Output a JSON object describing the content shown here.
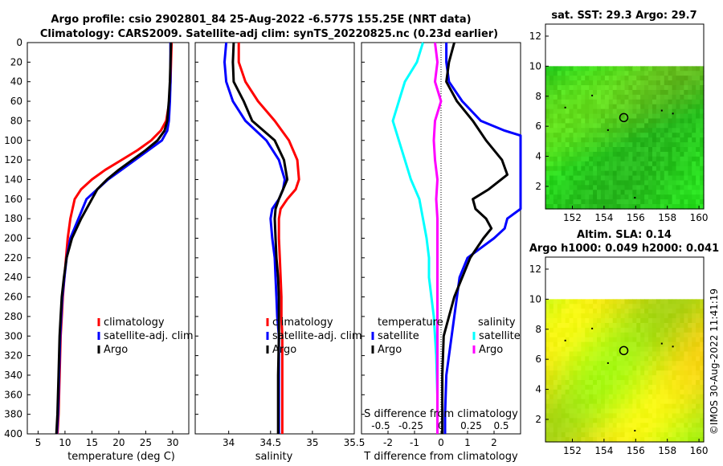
{
  "header": {
    "line1": "Argo profile: csio 2902801_84 25-Aug-2022 -6.577S 155.25E (NRT data)",
    "line2": "Climatology: CARS2009. Satellite-adj clim: synTS_20220825.nc (0.23d earlier)"
  },
  "copyright": "©IMOS 30-Aug-2022 11:41:19",
  "colors": {
    "climatology": "#ff0000",
    "satellite": "#0000ff",
    "argo": "#000000",
    "t_sat_diff": "#00ffff",
    "s_argo_diff": "#ff00ff"
  },
  "chart_data": [
    {
      "type": "line",
      "name": "temperature-profile",
      "xlabel": "temperature (deg C)",
      "ylabel": "",
      "xlim": [
        3,
        33
      ],
      "ylim": [
        400,
        0
      ],
      "xticks": [
        5,
        10,
        15,
        20,
        25,
        30
      ],
      "yticks": [
        0,
        20,
        40,
        60,
        80,
        100,
        120,
        140,
        160,
        180,
        200,
        220,
        240,
        260,
        280,
        300,
        320,
        340,
        360,
        380,
        400
      ],
      "legend": [
        "climatology",
        "satellite-adj. clim",
        "Argo"
      ],
      "series": [
        {
          "name": "climatology",
          "color": "#ff0000",
          "x": [
            29.8,
            29.7,
            29.6,
            29.4,
            28.8,
            27.8,
            26.0,
            23.5,
            20.5,
            17.5,
            15.0,
            13.0,
            11.8,
            11.0,
            10.5,
            10.2,
            9.9,
            9.6,
            9.4,
            9.2,
            9.0,
            8.8,
            8.6
          ],
          "y": [
            0,
            20,
            40,
            60,
            80,
            90,
            100,
            110,
            120,
            130,
            140,
            150,
            160,
            180,
            200,
            220,
            240,
            260,
            280,
            300,
            340,
            380,
            400
          ]
        },
        {
          "name": "satellite",
          "color": "#0000ff",
          "x": [
            29.6,
            29.6,
            29.6,
            29.5,
            29.3,
            29.0,
            28.0,
            25.5,
            23.0,
            20.5,
            18.0,
            16.0,
            14.0,
            12.5,
            11.0,
            10.3,
            9.9,
            9.5,
            9.3,
            9.1,
            8.9,
            8.7,
            8.5
          ],
          "y": [
            0,
            20,
            40,
            60,
            80,
            90,
            100,
            110,
            120,
            130,
            140,
            150,
            160,
            180,
            200,
            220,
            240,
            260,
            280,
            300,
            340,
            380,
            400
          ]
        },
        {
          "name": "Argo",
          "color": "#000000",
          "x": [
            29.7,
            29.6,
            29.5,
            29.3,
            29.0,
            28.5,
            27.2,
            25.0,
            22.5,
            20.0,
            17.8,
            16.0,
            15.0,
            13.0,
            11.3,
            10.3,
            9.8,
            9.4,
            9.2,
            9.0,
            8.8,
            8.6,
            8.4
          ],
          "y": [
            0,
            20,
            40,
            60,
            80,
            90,
            100,
            110,
            120,
            130,
            140,
            150,
            160,
            180,
            200,
            220,
            240,
            260,
            280,
            300,
            340,
            380,
            400
          ]
        }
      ]
    },
    {
      "type": "line",
      "name": "salinity-profile",
      "xlabel": "salinity",
      "xlim": [
        33.6,
        35.5
      ],
      "ylim": [
        400,
        0
      ],
      "xticks": [
        34,
        34.5,
        35,
        35.5
      ],
      "legend": [
        "climatology",
        "satellite-adj. clim",
        "Argo"
      ],
      "series": [
        {
          "name": "climatology",
          "color": "#ff0000",
          "x": [
            34.12,
            34.12,
            34.2,
            34.35,
            34.55,
            34.72,
            34.82,
            34.84,
            34.8,
            34.7,
            34.62,
            34.6,
            34.6,
            34.61,
            34.62,
            34.63,
            34.63,
            34.64,
            34.64,
            34.64,
            34.64
          ],
          "y": [
            0,
            20,
            40,
            60,
            80,
            100,
            120,
            140,
            150,
            160,
            170,
            180,
            200,
            220,
            240,
            260,
            280,
            300,
            340,
            380,
            400
          ]
        },
        {
          "name": "satellite",
          "color": "#0000ff",
          "x": [
            33.97,
            33.95,
            33.97,
            34.05,
            34.2,
            34.45,
            34.6,
            34.67,
            34.65,
            34.6,
            34.52,
            34.5,
            34.52,
            34.55,
            34.56,
            34.57,
            34.58,
            34.6,
            34.6,
            34.6,
            34.6
          ],
          "y": [
            0,
            20,
            40,
            60,
            80,
            100,
            120,
            140,
            150,
            160,
            170,
            180,
            200,
            220,
            240,
            260,
            280,
            300,
            340,
            380,
            400
          ]
        },
        {
          "name": "Argo",
          "color": "#000000",
          "x": [
            34.06,
            34.05,
            34.06,
            34.18,
            34.28,
            34.55,
            34.66,
            34.7,
            34.65,
            34.6,
            34.56,
            34.55,
            34.56,
            34.57,
            34.59,
            34.6,
            34.6,
            34.6,
            34.59,
            34.59,
            34.59
          ],
          "y": [
            0,
            20,
            40,
            60,
            80,
            100,
            120,
            140,
            150,
            160,
            170,
            180,
            200,
            220,
            240,
            260,
            280,
            300,
            340,
            380,
            400
          ]
        }
      ]
    },
    {
      "type": "line",
      "name": "difference-from-climatology",
      "xlabel": "T difference from climatology",
      "top_axis_label": "S difference from climatology",
      "xlim": [
        -3,
        3
      ],
      "ylim": [
        400,
        0
      ],
      "xticks": [
        -2,
        -1,
        0,
        1,
        2
      ],
      "top_xticks_labels": [
        "-0.5",
        "-0.25",
        "0",
        "0.25",
        "0.5"
      ],
      "top_xticks_values": [
        -0.5,
        -0.25,
        0,
        0.25,
        0.5
      ],
      "legend_temperature_title": "temperature",
      "legend_salinity_title": "salinity",
      "legend": [
        "satellite",
        "Argo",
        "satellite",
        "Argo"
      ],
      "series": [
        {
          "name": "T satellite",
          "color": "#0000ff",
          "x": [
            0.2,
            0.2,
            0.3,
            0.8,
            1.5,
            2.4,
            3.0,
            3.0,
            2.5,
            2.4,
            2.0,
            1.5,
            1.0,
            0.7,
            0.6,
            0.5,
            0.4,
            0.3,
            0.2,
            0.15,
            0.15
          ],
          "y": [
            0,
            20,
            40,
            60,
            80,
            90,
            95,
            170,
            180,
            190,
            200,
            210,
            220,
            240,
            260,
            280,
            300,
            320,
            340,
            380,
            400
          ]
        },
        {
          "name": "T Argo",
          "color": "#000000",
          "x": [
            0.5,
            0.3,
            0.2,
            0.6,
            1.2,
            1.7,
            2.3,
            2.5,
            1.8,
            1.2,
            1.3,
            1.7,
            1.9,
            1.6,
            1.1,
            0.8,
            0.5,
            0.3,
            0.1,
            0.05,
            0.05
          ],
          "y": [
            0,
            20,
            40,
            60,
            80,
            100,
            120,
            135,
            150,
            160,
            170,
            180,
            190,
            200,
            220,
            240,
            260,
            280,
            300,
            340,
            400
          ]
        },
        {
          "name": "S satellite",
          "color": "#00ffff",
          "x": [
            -0.15,
            -0.2,
            -0.3,
            -0.35,
            -0.4,
            -0.35,
            -0.3,
            -0.25,
            -0.18,
            -0.15,
            -0.12,
            -0.1,
            -0.1,
            -0.08,
            -0.06,
            -0.05,
            -0.04,
            -0.03,
            -0.03
          ],
          "y": [
            0,
            20,
            40,
            60,
            80,
            100,
            120,
            140,
            160,
            180,
            200,
            220,
            240,
            260,
            280,
            300,
            320,
            360,
            400
          ]
        },
        {
          "name": "S Argo",
          "color": "#ff00ff",
          "x": [
            -0.05,
            -0.03,
            -0.05,
            0.0,
            -0.05,
            -0.06,
            -0.05,
            -0.03,
            -0.04,
            -0.03,
            -0.03,
            -0.03,
            -0.03,
            -0.03,
            -0.03,
            -0.03,
            -0.03,
            -0.03
          ],
          "y": [
            0,
            20,
            40,
            60,
            80,
            100,
            120,
            140,
            160,
            180,
            200,
            220,
            240,
            260,
            280,
            300,
            340,
            400
          ]
        }
      ]
    },
    {
      "type": "heatmap",
      "name": "sat-sst-map",
      "title": "sat. SST: 29.3  Argo: 29.7",
      "xticks": [
        152,
        154,
        156,
        158,
        160
      ],
      "yticks": [
        2,
        4,
        6,
        8,
        10,
        12
      ],
      "xlim": [
        150.3,
        160.3
      ],
      "ylim": [
        0.5,
        12.8
      ],
      "data_ylim": [
        0.5,
        10
      ],
      "float_lon": 155.25,
      "float_lat": 6.577
    },
    {
      "type": "heatmap",
      "name": "altim-sla-map",
      "title_line1": "Altim. SLA: 0.14",
      "title_line2": "Argo h1000: 0.049 h2000: 0.041",
      "xticks": [
        152,
        154,
        156,
        158,
        160
      ],
      "yticks": [
        2,
        4,
        6,
        8,
        10,
        12
      ],
      "xlim": [
        150.3,
        160.3
      ],
      "ylim": [
        0.5,
        12.8
      ],
      "data_ylim": [
        0.5,
        10
      ],
      "float_lon": 155.25,
      "float_lat": 6.577
    }
  ]
}
